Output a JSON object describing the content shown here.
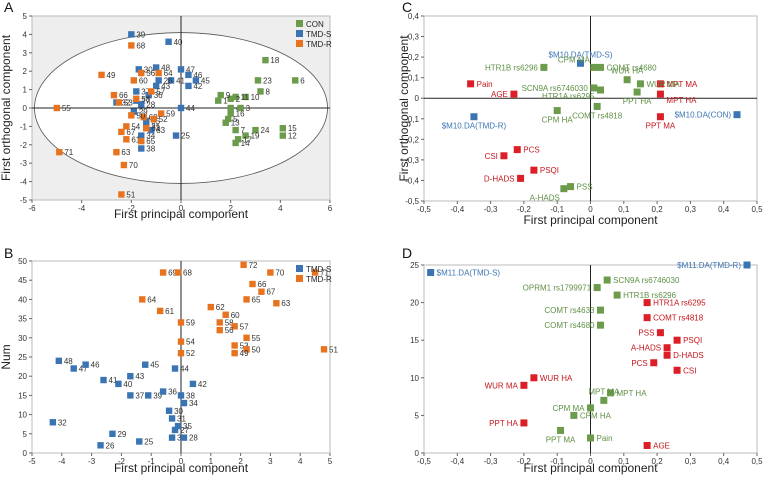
{
  "colors": {
    "CON": "#6b9b4b",
    "TMD-S": "#3b74b3",
    "TMD-R": "#e8731f",
    "RED": "#dc1f26",
    "GREEN_LBL": "#5f8f45",
    "BLUE_LBL": "#3b74b3",
    "RED_LBL": "#c4161c"
  },
  "chart_data": [
    {
      "id": "A",
      "letter": "A",
      "type": "scatter",
      "xlabel": "First principal component",
      "ylabel": "First orthogonal component",
      "xlim": [
        -6,
        6
      ],
      "ylim": [
        -5,
        5
      ],
      "xticks": [
        "-6",
        "-4",
        "-2",
        "0",
        "2",
        "4",
        "6"
      ],
      "yticks": [
        "-5",
        "-4",
        "-3",
        "-2",
        "-1",
        "0",
        "1",
        "2",
        "3",
        "4",
        "5"
      ],
      "legend": [
        "CON",
        "TMD-S",
        "TMD-R"
      ],
      "series": [
        {
          "name": "CON",
          "points": [
            [
              3.4,
              2.6,
              "18"
            ],
            [
              3.1,
              1.5,
              "23"
            ],
            [
              4.6,
              1.5,
              "6"
            ],
            [
              3.2,
              0.9,
              "8"
            ],
            [
              2.6,
              0.6,
              "10"
            ],
            [
              2.2,
              0.6,
              "11"
            ],
            [
              2.0,
              0.5,
              "2"
            ],
            [
              1.5,
              0.4,
              "1"
            ],
            [
              2.0,
              0.0,
              "4"
            ],
            [
              2.4,
              0.0,
              "3"
            ],
            [
              2.0,
              -0.3,
              "16"
            ],
            [
              3.0,
              -1.2,
              "24"
            ],
            [
              2.6,
              -1.5,
              "19"
            ],
            [
              2.3,
              -1.7,
              "17"
            ],
            [
              2.2,
              -1.9,
              "14"
            ],
            [
              4.1,
              -1.1,
              "15"
            ],
            [
              4.1,
              -1.5,
              "12"
            ],
            [
              1.6,
              0.7,
              "9"
            ],
            [
              1.8,
              -0.8,
              "13"
            ],
            [
              2.2,
              -1.2,
              "7"
            ],
            [
              1.9,
              -0.6,
              "5"
            ]
          ]
        },
        {
          "name": "TMD-S",
          "points": [
            [
              -2.0,
              4.0,
              "39"
            ],
            [
              -0.5,
              3.6,
              "40"
            ],
            [
              -1.0,
              2.2,
              "48"
            ],
            [
              0.0,
              2.1,
              "47"
            ],
            [
              0.3,
              1.8,
              "46"
            ],
            [
              -0.4,
              1.5,
              "41"
            ],
            [
              0.6,
              1.5,
              "45"
            ],
            [
              0.3,
              1.2,
              "42"
            ],
            [
              -1.0,
              1.2,
              "43"
            ],
            [
              -1.7,
              2.1,
              "30"
            ],
            [
              -1.8,
              0.9,
              "37"
            ],
            [
              -1.3,
              0.7,
              "36"
            ],
            [
              -1.8,
              0.4,
              "27"
            ],
            [
              -2.6,
              0.3,
              "32"
            ],
            [
              -1.6,
              0.2,
              "28"
            ],
            [
              0.0,
              0.0,
              "44"
            ],
            [
              -1.4,
              -1.0,
              "31"
            ],
            [
              -1.6,
              -1.5,
              "34"
            ],
            [
              -0.2,
              -1.5,
              "25"
            ],
            [
              -1.6,
              -2.2,
              "38"
            ],
            [
              -1.4,
              -0.7,
              "35"
            ],
            [
              -1.2,
              -1.2,
              "33"
            ],
            [
              -1.9,
              -0.2,
              "29"
            ],
            [
              -0.9,
              1.5,
              "26"
            ]
          ]
        },
        {
          "name": "TMD-R",
          "points": [
            [
              -2.0,
              3.4,
              "68"
            ],
            [
              -3.2,
              1.8,
              "49"
            ],
            [
              -1.9,
              1.5,
              "60"
            ],
            [
              -0.9,
              1.9,
              "64"
            ],
            [
              -1.6,
              1.9,
              "56"
            ],
            [
              -2.7,
              0.7,
              "66"
            ],
            [
              -2.5,
              0.3,
              "53"
            ],
            [
              -1.8,
              0.5,
              "58"
            ],
            [
              -5.0,
              0.0,
              "55"
            ],
            [
              -1.5,
              -0.5,
              "69"
            ],
            [
              -1.4,
              -1.1,
              "62"
            ],
            [
              -2.4,
              -1.3,
              "67"
            ],
            [
              -2.2,
              -1.0,
              "54"
            ],
            [
              -2.2,
              -1.7,
              "61"
            ],
            [
              -1.6,
              -1.8,
              "65"
            ],
            [
              -4.9,
              -2.4,
              "71"
            ],
            [
              -2.6,
              -2.4,
              "63"
            ],
            [
              -2.3,
              -3.1,
              "70"
            ],
            [
              -2.4,
              -4.7,
              "51"
            ],
            [
              -0.8,
              -0.3,
              "59"
            ],
            [
              -1.2,
              0.9,
              "57"
            ],
            [
              -1.1,
              -0.6,
              "52"
            ],
            [
              -2.0,
              -0.4,
              "50"
            ]
          ]
        }
      ],
      "ellipse": {
        "cx": 0,
        "cy": 0,
        "rx": 5.9,
        "ry": 4.1
      }
    },
    {
      "id": "B",
      "letter": "B",
      "type": "scatter",
      "xlabel": "First principal component",
      "ylabel": "Num",
      "xlim": [
        -5,
        5
      ],
      "ylim": [
        0,
        50
      ],
      "xticks": [
        "-5",
        "-4",
        "-3",
        "-2",
        "-1",
        "0",
        "1",
        "2",
        "3",
        "4",
        "5"
      ],
      "yticks": [
        "0",
        "5",
        "10",
        "15",
        "20",
        "25",
        "30",
        "35",
        "40",
        "45",
        "50"
      ],
      "legend": [
        "TMD-S",
        "TMD-R"
      ],
      "series": [
        {
          "name": "TMD-S",
          "points": [
            [
              -4.1,
              24,
              "48"
            ],
            [
              -3.6,
              22,
              "47"
            ],
            [
              -3.2,
              23,
              "46"
            ],
            [
              -2.6,
              19,
              "41"
            ],
            [
              -2.1,
              18,
              "40"
            ],
            [
              -1.7,
              20,
              "43"
            ],
            [
              -1.7,
              15,
              "37"
            ],
            [
              -1.2,
              23,
              "45"
            ],
            [
              -1.1,
              15,
              "39"
            ],
            [
              -0.6,
              16,
              "36"
            ],
            [
              -0.4,
              11,
              "30"
            ],
            [
              -0.3,
              9,
              "31"
            ],
            [
              -0.2,
              6,
              "27"
            ],
            [
              -1.4,
              3,
              "25"
            ],
            [
              -2.3,
              5,
              "29"
            ],
            [
              -2.7,
              2,
              "26"
            ],
            [
              -4.3,
              8,
              "32"
            ],
            [
              0.0,
              15,
              "38"
            ],
            [
              0.1,
              13,
              "34"
            ],
            [
              -0.1,
              7,
              "35"
            ],
            [
              -0.3,
              4,
              "33"
            ],
            [
              0.1,
              4,
              "28"
            ],
            [
              0.4,
              18,
              "42"
            ],
            [
              -0.2,
              22,
              "44"
            ]
          ]
        },
        {
          "name": "TMD-R",
          "points": [
            [
              -0.6,
              47,
              "69"
            ],
            [
              -0.1,
              47,
              "68"
            ],
            [
              2.1,
              49,
              "72"
            ],
            [
              3.0,
              47,
              "70"
            ],
            [
              4.5,
              47,
              "71"
            ],
            [
              2.4,
              44,
              "66"
            ],
            [
              2.7,
              42,
              "67"
            ],
            [
              2.2,
              40,
              "65"
            ],
            [
              3.2,
              39,
              "63"
            ],
            [
              -1.3,
              40,
              "64"
            ],
            [
              -0.7,
              37,
              "61"
            ],
            [
              1.0,
              38,
              "62"
            ],
            [
              1.5,
              36,
              "60"
            ],
            [
              1.3,
              34,
              "58"
            ],
            [
              1.8,
              33,
              "57"
            ],
            [
              0.0,
              34,
              "59"
            ],
            [
              1.3,
              32,
              "56"
            ],
            [
              2.2,
              30,
              "55"
            ],
            [
              0.0,
              29,
              "54"
            ],
            [
              1.8,
              28,
              "53"
            ],
            [
              2.2,
              27,
              "50"
            ],
            [
              1.8,
              26,
              "49"
            ],
            [
              0.0,
              26,
              "52"
            ],
            [
              4.8,
              27,
              "51"
            ]
          ]
        }
      ]
    },
    {
      "id": "C",
      "letter": "C",
      "type": "scatter",
      "xlabel": "First principal component",
      "ylabel": "First orthogonal component",
      "xlim": [
        -0.5,
        0.5
      ],
      "ylim": [
        -0.5,
        0.4
      ],
      "xticks": [
        "-0,5",
        "-0,4",
        "-0,3",
        "-0,2",
        "-0,1",
        "0",
        "0,1",
        "0,2",
        "0,3",
        "0,4",
        "0,5"
      ],
      "yticks": [
        "-0,5",
        "-0,4",
        "-0,3",
        "-0,2",
        "-0,1",
        "0",
        "0,1",
        "0,2",
        "0,3",
        "0,4"
      ],
      "points": [
        [
          -0.03,
          0.17,
          "$M10.DA(TMD-S)",
          "blue",
          "above"
        ],
        [
          -0.35,
          -0.09,
          "$M10.DA(TMD-R)",
          "blue",
          "below"
        ],
        [
          0.44,
          -0.08,
          "$M10.DA(CON)",
          "blue",
          "left"
        ],
        [
          -0.36,
          0.07,
          "Pain",
          "red",
          "right"
        ],
        [
          -0.23,
          0.02,
          "AGE",
          "red",
          "left"
        ],
        [
          0.21,
          0.07,
          "MPT MA",
          "red",
          "right"
        ],
        [
          0.21,
          0.02,
          "MPT HA",
          "red",
          "right-below"
        ],
        [
          0.21,
          -0.09,
          "PPT MA",
          "red",
          "below"
        ],
        [
          -0.26,
          -0.28,
          "CSI",
          "red",
          "left"
        ],
        [
          -0.22,
          -0.25,
          "PCS",
          "red",
          "right"
        ],
        [
          -0.21,
          -0.39,
          "D-HADS",
          "red",
          "left"
        ],
        [
          -0.17,
          -0.35,
          "PSQI",
          "red",
          "right"
        ],
        [
          -0.14,
          0.15,
          "HTR1B rs6296",
          "green",
          "left"
        ],
        [
          0.01,
          0.15,
          "CPM MA",
          "green",
          "above-left"
        ],
        [
          0.03,
          0.15,
          "COMT rs4680",
          "green",
          "right"
        ],
        [
          0.11,
          0.09,
          "WUR HA",
          "green",
          "above"
        ],
        [
          0.15,
          0.07,
          "WUR MA",
          "green",
          "right"
        ],
        [
          0.01,
          0.05,
          "SCN9A rs6746030",
          "green",
          "left"
        ],
        [
          0.03,
          0.04,
          "HTR1A rs6295",
          "green",
          "left-below"
        ],
        [
          0.14,
          0.03,
          "PPT HA",
          "green",
          "below"
        ],
        [
          -0.1,
          -0.06,
          "CPM HA",
          "green",
          "below"
        ],
        [
          0.02,
          -0.04,
          "COMT rs4818",
          "green",
          "below"
        ],
        [
          -0.06,
          -0.43,
          "PSS",
          "green",
          "right"
        ],
        [
          -0.08,
          -0.44,
          "A-HADS",
          "green",
          "below-left"
        ]
      ]
    },
    {
      "id": "D",
      "letter": "D",
      "type": "scatter",
      "xlabel": "First principal component",
      "ylabel": "",
      "xlim": [
        -0.5,
        0.5
      ],
      "ylim": [
        0,
        25
      ],
      "xticks": [
        "-0,5",
        "-0,4",
        "-0,3",
        "-0,2",
        "-0,1",
        "0",
        "0,1",
        "0,2",
        "0,3",
        "0,4",
        "0,5"
      ],
      "yticks": [
        "0",
        "5",
        "10",
        "15",
        "20",
        "25"
      ],
      "points": [
        [
          -0.48,
          24,
          "$M11.DA(TMD-S)",
          "blue",
          "right"
        ],
        [
          0.47,
          25,
          "$M11.DA(TMD-R)",
          "blue",
          "left"
        ],
        [
          0.05,
          23,
          "SCN9A rs6746030",
          "green",
          "right"
        ],
        [
          0.02,
          22,
          "OPRM1 rs1799971",
          "green",
          "left"
        ],
        [
          0.08,
          21,
          "HTR1B rs6296",
          "green",
          "right"
        ],
        [
          0.03,
          19,
          "COMT rs4633",
          "green",
          "left"
        ],
        [
          0.03,
          17,
          "COMT rs4680",
          "green",
          "left"
        ],
        [
          0.06,
          8,
          "MPT HA",
          "green",
          "right"
        ],
        [
          0.04,
          7,
          "MPT MA",
          "green",
          "above"
        ],
        [
          0.0,
          6,
          "CPM MA",
          "green",
          "left"
        ],
        [
          -0.05,
          5,
          "CPM HA",
          "green",
          "right"
        ],
        [
          -0.09,
          3,
          "PPT MA",
          "green",
          "below"
        ],
        [
          0.0,
          2,
          "Pain",
          "green",
          "right"
        ],
        [
          0.17,
          20,
          "HTR1A rs6295",
          "red",
          "right"
        ],
        [
          0.17,
          18,
          "COMT rs4818",
          "red",
          "right"
        ],
        [
          0.21,
          16,
          "PSS",
          "red",
          "left"
        ],
        [
          0.26,
          15,
          "PSQI",
          "red",
          "right"
        ],
        [
          0.23,
          14,
          "A-HADS",
          "red",
          "left"
        ],
        [
          0.23,
          13,
          "D-HADS",
          "red",
          "right"
        ],
        [
          0.19,
          12,
          "PCS",
          "red",
          "left"
        ],
        [
          0.26,
          11,
          "CSI",
          "red",
          "right"
        ],
        [
          -0.17,
          10,
          "WUR HA",
          "red",
          "right"
        ],
        [
          -0.2,
          9,
          "WUR MA",
          "red",
          "left"
        ],
        [
          -0.2,
          4,
          "PPT HA",
          "red",
          "left"
        ],
        [
          0.17,
          1,
          "AGE",
          "red",
          "right"
        ]
      ]
    }
  ]
}
